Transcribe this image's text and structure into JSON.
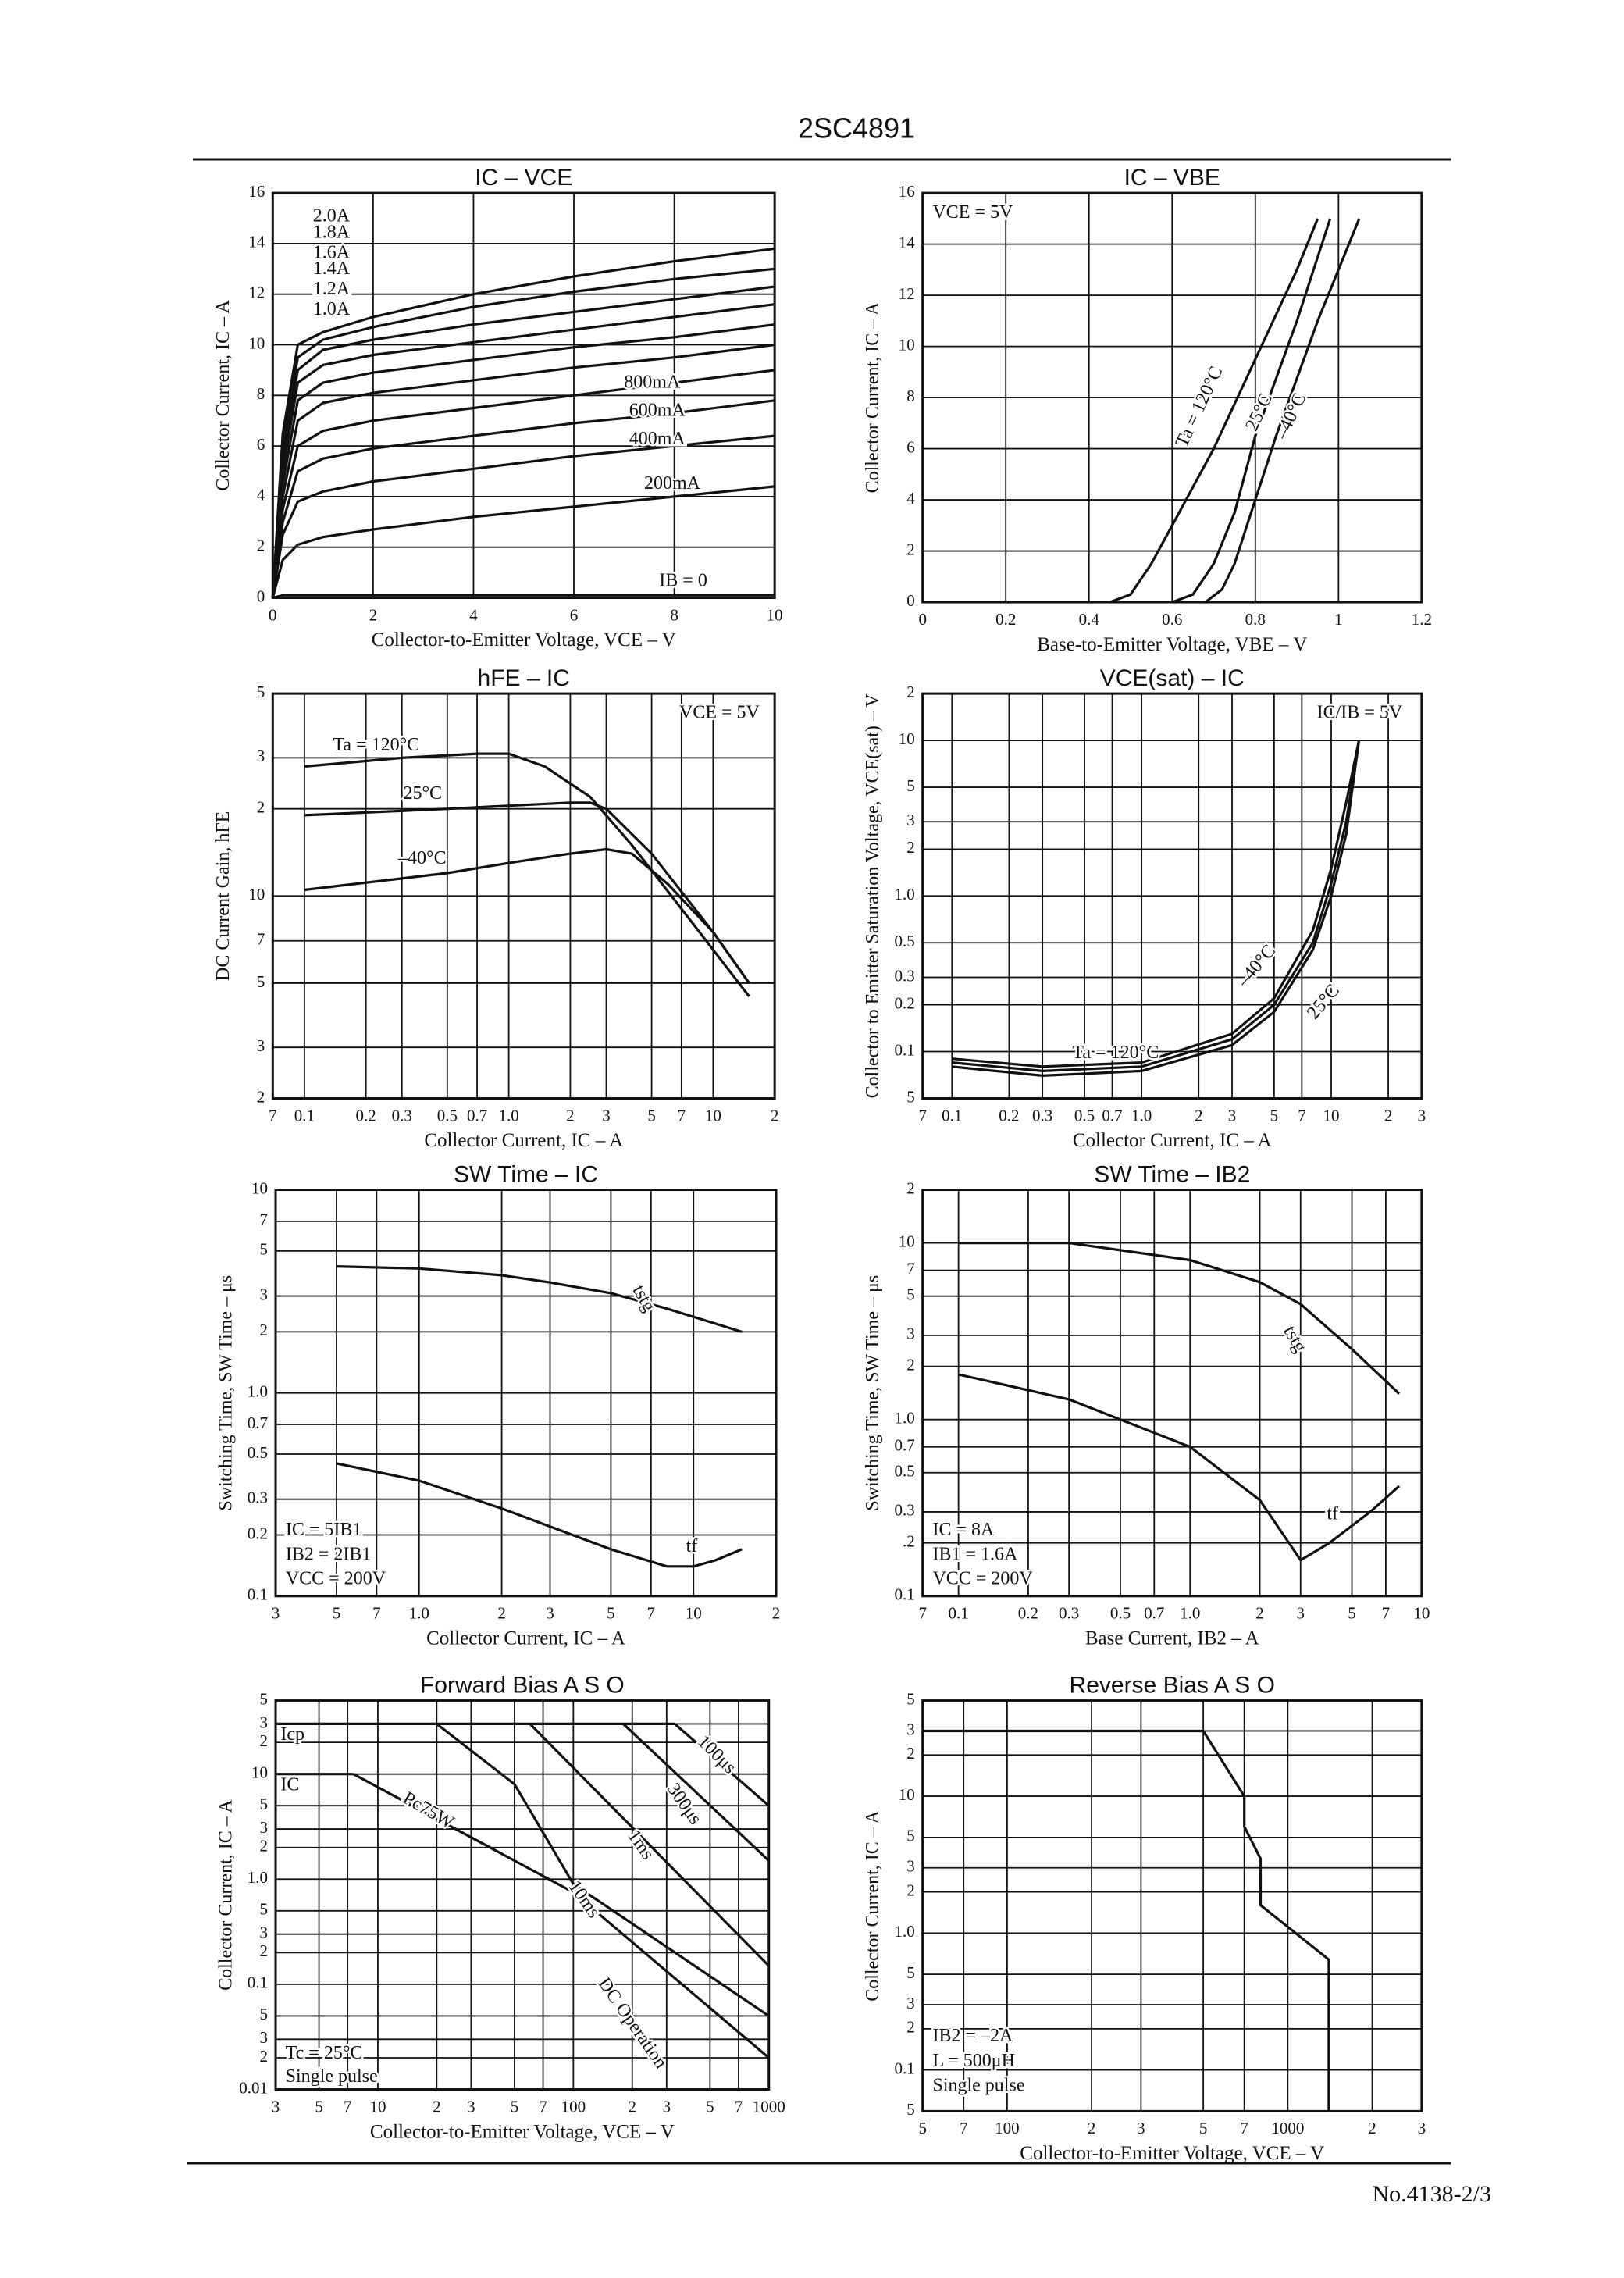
{
  "header": {
    "title": "2SC4891"
  },
  "footer": {
    "text": "No.4138-2/3"
  },
  "chart_data": [
    {
      "type": "line",
      "title": "IC – VCE",
      "x_label": "Collector-to-Emitter Voltage, VCE – V",
      "y_label": "Collector Current, IC – A",
      "xlim": [
        0,
        10
      ],
      "ylim": [
        0,
        16
      ],
      "xticks": [
        0,
        2,
        4,
        6,
        8,
        10
      ],
      "yticks": [
        0,
        2,
        4,
        6,
        8,
        10,
        12,
        14,
        16
      ],
      "grid": true,
      "color": "#111",
      "x": [
        0,
        0.2,
        0.5,
        1,
        2,
        4,
        6,
        8,
        10
      ],
      "series": [
        {
          "name": "IB = 0",
          "values": [
            0,
            0.1,
            0.1,
            0.1,
            0.1,
            0.1,
            0.1,
            0.1,
            0.1
          ]
        },
        {
          "name": "200mA",
          "values": [
            0,
            1.5,
            2.1,
            2.4,
            2.7,
            3.2,
            3.6,
            4.0,
            4.4
          ]
        },
        {
          "name": "400mA",
          "values": [
            0,
            2.5,
            3.8,
            4.2,
            4.6,
            5.1,
            5.6,
            6.0,
            6.4
          ]
        },
        {
          "name": "600mA",
          "values": [
            0,
            3,
            5,
            5.5,
            5.9,
            6.4,
            6.9,
            7.3,
            7.8
          ]
        },
        {
          "name": "800mA",
          "values": [
            0,
            3.5,
            6,
            6.6,
            7,
            7.5,
            8,
            8.5,
            9.0
          ]
        },
        {
          "name": "1.0A",
          "values": [
            0,
            4,
            7,
            7.7,
            8.1,
            8.6,
            9.1,
            9.5,
            10.0
          ]
        },
        {
          "name": "1.2A",
          "values": [
            0,
            4.5,
            7.8,
            8.5,
            8.9,
            9.4,
            9.9,
            10.3,
            10.8
          ]
        },
        {
          "name": "1.4A",
          "values": [
            0,
            5,
            8.5,
            9.2,
            9.6,
            10.1,
            10.6,
            11.1,
            11.6
          ]
        },
        {
          "name": "1.6A",
          "values": [
            0,
            5.5,
            9,
            9.8,
            10.2,
            10.8,
            11.3,
            11.8,
            12.3
          ]
        },
        {
          "name": "1.8A",
          "values": [
            0,
            6,
            9.5,
            10.2,
            10.7,
            11.5,
            12.1,
            12.6,
            13.0
          ]
        },
        {
          "name": "2.0A",
          "values": [
            0,
            6.5,
            10,
            10.5,
            11.1,
            12,
            12.7,
            13.3,
            13.8
          ]
        }
      ]
    },
    {
      "type": "line",
      "title": "IC – VBE",
      "x_label": "Base-to-Emitter Voltage, VBE – V",
      "y_label": "Collector Current, IC – A",
      "xlim": [
        0,
        1.2
      ],
      "ylim": [
        0,
        16
      ],
      "xticks": [
        0,
        0.2,
        0.4,
        0.6,
        0.8,
        1.0,
        1.2
      ],
      "yticks": [
        0,
        2,
        4,
        6,
        8,
        10,
        12,
        14,
        16
      ],
      "grid": true,
      "color": "#111",
      "annotations": [
        "VCE = 5V"
      ],
      "series": [
        {
          "name": "Ta = 120°C",
          "x": [
            0.45,
            0.5,
            0.55,
            0.6,
            0.7,
            0.8,
            0.9,
            0.95
          ],
          "values": [
            0,
            0.3,
            1.5,
            3,
            6,
            9.5,
            13,
            15
          ]
        },
        {
          "name": "25°C",
          "x": [
            0.6,
            0.65,
            0.7,
            0.75,
            0.8,
            0.9,
            0.98
          ],
          "values": [
            0,
            0.3,
            1.5,
            3.5,
            6.5,
            11,
            15
          ]
        },
        {
          "name": "–40°C",
          "x": [
            0.68,
            0.72,
            0.75,
            0.78,
            0.85,
            0.95,
            1.05
          ],
          "values": [
            0,
            0.5,
            1.5,
            3,
            6.5,
            11,
            15
          ]
        }
      ]
    },
    {
      "type": "line",
      "title": "hFE – IC",
      "x_label": "Collector Current, IC – A",
      "y_label": "DC Current Gain, hFE",
      "xscale": "log",
      "yscale": "log",
      "xlim": [
        0.07,
        20
      ],
      "ylim": [
        2,
        50
      ],
      "grid": true,
      "color": "#111",
      "xticks": [
        {
          "value": 0.07,
          "label": "7"
        },
        0.1,
        0.2,
        0.3,
        0.5,
        0.7,
        {
          "value": 1,
          "label": "1.0"
        },
        2,
        3,
        5,
        7,
        10,
        {
          "value": 20,
          "label": "2"
        }
      ],
      "yticks": [
        2,
        3,
        5,
        7,
        10,
        {
          "value": 20,
          "label": "2"
        },
        {
          "value": 30,
          "label": "3"
        },
        {
          "value": 50,
          "label": "5"
        }
      ],
      "annotations": [
        "VCE = 5V"
      ],
      "series": [
        {
          "name": "Ta = 120°C",
          "x": [
            0.1,
            0.3,
            0.7,
            1.0,
            1.5,
            2.5,
            4,
            8,
            15
          ],
          "values": [
            28,
            30,
            31,
            31,
            28,
            22,
            15,
            8,
            4.5
          ]
        },
        {
          "name": "25°C",
          "x": [
            0.1,
            0.5,
            1,
            2,
            2.5,
            3,
            5,
            10,
            15
          ],
          "values": [
            19,
            20,
            20.5,
            21,
            21,
            20,
            14,
            7.5,
            5
          ]
        },
        {
          "name": "–40°C",
          "x": [
            0.1,
            0.5,
            1,
            2,
            3,
            4,
            6,
            10,
            15
          ],
          "values": [
            10.5,
            12,
            13,
            14,
            14.5,
            14,
            11,
            7.5,
            5
          ]
        }
      ]
    },
    {
      "type": "line",
      "title": "VCE(sat) – IC",
      "x_label": "Collector Current, IC – A",
      "y_label": "Collector to Emitter Saturation Voltage, VCE(sat) – V",
      "xscale": "log",
      "yscale": "log",
      "xlim": [
        0.07,
        30
      ],
      "ylim": [
        0.05,
        20
      ],
      "grid": true,
      "color": "#111",
      "xticks": [
        {
          "value": 0.07,
          "label": "7"
        },
        0.1,
        0.2,
        0.3,
        0.5,
        0.7,
        {
          "value": 1,
          "label": "1.0"
        },
        2,
        3,
        5,
        7,
        10,
        {
          "value": 20,
          "label": "2"
        },
        {
          "value": 30,
          "label": "3"
        }
      ],
      "yticks": [
        {
          "value": 0.05,
          "label": "5"
        },
        0.1,
        0.2,
        0.3,
        0.5,
        {
          "value": 1,
          "label": "1.0"
        },
        2,
        3,
        5,
        10,
        {
          "value": 20,
          "label": "2"
        }
      ],
      "annotations": [
        "IC/IB = 5V"
      ],
      "series": [
        {
          "name": "Ta = 120°C",
          "x": [
            0.1,
            0.3,
            1,
            3,
            5,
            8,
            10,
            12,
            14
          ],
          "values": [
            0.09,
            0.08,
            0.085,
            0.13,
            0.22,
            0.6,
            1.5,
            4,
            10
          ]
        },
        {
          "name": "–40°C",
          "x": [
            0.1,
            0.3,
            1,
            3,
            5,
            8,
            10,
            12,
            14
          ],
          "values": [
            0.08,
            0.07,
            0.075,
            0.11,
            0.18,
            0.45,
            1.0,
            2.5,
            10
          ]
        },
        {
          "name": "25°C",
          "x": [
            0.1,
            0.3,
            1,
            3,
            5,
            8,
            10,
            12,
            14
          ],
          "values": [
            0.085,
            0.075,
            0.08,
            0.12,
            0.2,
            0.5,
            1.2,
            3,
            10
          ]
        }
      ]
    },
    {
      "type": "line",
      "title": "SW Time – IC",
      "x_label": "Collector Current, IC – A",
      "y_label": "Switching Time, SW Time – μs",
      "xscale": "log",
      "yscale": "log",
      "xlim": [
        0.3,
        20
      ],
      "ylim": [
        0.1,
        10
      ],
      "grid": true,
      "color": "#111",
      "xticks": [
        {
          "value": 0.3,
          "label": "3"
        },
        {
          "value": 0.5,
          "label": "5"
        },
        {
          "value": 0.7,
          "label": "7"
        },
        {
          "value": 1,
          "label": "1.0"
        },
        2,
        3,
        5,
        7,
        10,
        {
          "value": 20,
          "label": "2"
        }
      ],
      "yticks": [
        0.1,
        0.2,
        0.3,
        0.5,
        0.7,
        {
          "value": 1,
          "label": "1.0"
        },
        2,
        3,
        5,
        7,
        10
      ],
      "annotations": [
        "IC = 5IB1",
        "IB2 = 2IB1",
        "VCC = 200V"
      ],
      "series": [
        {
          "name": "tstg",
          "x": [
            0.5,
            1,
            2,
            3,
            5,
            8,
            15
          ],
          "values": [
            4.2,
            4.1,
            3.8,
            3.5,
            3.1,
            2.6,
            2.0
          ]
        },
        {
          "name": "tf",
          "x": [
            0.5,
            1,
            2,
            3,
            5,
            8,
            10,
            12,
            15
          ],
          "values": [
            0.45,
            0.37,
            0.27,
            0.22,
            0.17,
            0.14,
            0.14,
            0.15,
            0.17
          ]
        }
      ]
    },
    {
      "type": "line",
      "title": "SW Time – IB2",
      "x_label": "Base Current, IB2 – A",
      "y_label": "Switching Time, SW Time – μs",
      "xscale": "log",
      "yscale": "log",
      "xlim": [
        0.07,
        10
      ],
      "ylim": [
        0.1,
        20
      ],
      "grid": true,
      "color": "#111",
      "xticks": [
        {
          "value": 0.07,
          "label": "7"
        },
        0.1,
        0.2,
        0.3,
        0.5,
        0.7,
        {
          "value": 1,
          "label": "1.0"
        },
        2,
        3,
        5,
        7,
        10
      ],
      "yticks": [
        0.1,
        {
          "value": 0.2,
          "label": ".2"
        },
        0.3,
        0.5,
        0.7,
        {
          "value": 1,
          "label": "1.0"
        },
        2,
        3,
        5,
        7,
        10,
        {
          "value": 20,
          "label": "2"
        }
      ],
      "annotations": [
        "IC = 8A",
        "IB1 = 1.6A",
        "VCC = 200V"
      ],
      "series": [
        {
          "name": "tstg",
          "x": [
            0.1,
            0.3,
            1,
            2,
            3,
            5,
            8
          ],
          "values": [
            10,
            10,
            8,
            6,
            4.5,
            2.5,
            1.4
          ]
        },
        {
          "name": "tf",
          "x": [
            0.1,
            0.3,
            1,
            2,
            3,
            4,
            6,
            8
          ],
          "values": [
            1.8,
            1.3,
            0.7,
            0.35,
            0.16,
            0.2,
            0.3,
            0.42
          ]
        }
      ]
    },
    {
      "type": "line",
      "title": "Forward Bias A S O",
      "x_label": "Collector-to-Emitter Voltage, VCE – V",
      "y_label": "Collector Current, IC – A",
      "xscale": "log",
      "yscale": "log",
      "xlim": [
        3,
        1000
      ],
      "ylim": [
        0.01,
        50
      ],
      "grid": true,
      "color": "#111",
      "xticks": [
        3,
        5,
        7,
        10,
        {
          "value": 20,
          "label": "2"
        },
        {
          "value": 30,
          "label": "3"
        },
        {
          "value": 50,
          "label": "5"
        },
        {
          "value": 70,
          "label": "7"
        },
        100,
        {
          "value": 200,
          "label": "2"
        },
        {
          "value": 300,
          "label": "3"
        },
        {
          "value": 500,
          "label": "5"
        },
        {
          "value": 700,
          "label": "7"
        },
        1000
      ],
      "yticks": [
        0.01,
        {
          "value": 0.02,
          "label": "2"
        },
        {
          "value": 0.03,
          "label": "3"
        },
        {
          "value": 0.05,
          "label": "5"
        },
        0.1,
        {
          "value": 0.2,
          "label": "2"
        },
        {
          "value": 0.3,
          "label": "3"
        },
        {
          "value": 0.5,
          "label": "5"
        },
        {
          "value": 1,
          "label": "1.0"
        },
        2,
        3,
        5,
        10,
        {
          "value": 20,
          "label": "2"
        },
        {
          "value": 30,
          "label": "3"
        },
        {
          "value": 50,
          "label": "5"
        }
      ],
      "annotations": [
        "Tc = 25°C",
        "Single pulse"
      ],
      "series": [
        {
          "name": "Icp",
          "x": [
            3,
            330
          ],
          "values": [
            30,
            30
          ]
        },
        {
          "name": "IC",
          "x": [
            3,
            7.5
          ],
          "values": [
            10,
            10
          ]
        },
        {
          "name": "Pc75W",
          "x": [
            7.5,
            100
          ],
          "values": [
            10,
            0.75
          ]
        },
        {
          "name": "DC Operation",
          "x": [
            100,
            1000
          ],
          "values": [
            0.75,
            0.02
          ]
        },
        {
          "name": "10ms",
          "x": [
            20,
            50,
            100,
            1000
          ],
          "values": [
            30,
            8,
            0.9,
            0.05
          ]
        },
        {
          "name": "1ms",
          "x": [
            60,
            1000
          ],
          "values": [
            30,
            0.15
          ]
        },
        {
          "name": "300μs",
          "x": [
            180,
            1000
          ],
          "values": [
            30,
            1.5
          ]
        },
        {
          "name": "100μs",
          "x": [
            330,
            1000
          ],
          "values": [
            30,
            5
          ]
        }
      ]
    },
    {
      "type": "line",
      "title": "Reverse Bias A S O",
      "x_label": "Collector-to-Emitter Voltage, VCE – V",
      "y_label": "Collector Current, IC – A",
      "xscale": "log",
      "yscale": "log",
      "xlim": [
        50,
        3000
      ],
      "ylim": [
        0.05,
        50
      ],
      "grid": true,
      "color": "#111",
      "xticks": [
        {
          "value": 50,
          "label": "5"
        },
        {
          "value": 70,
          "label": "7"
        },
        100,
        {
          "value": 200,
          "label": "2"
        },
        {
          "value": 300,
          "label": "3"
        },
        {
          "value": 500,
          "label": "5"
        },
        {
          "value": 700,
          "label": "7"
        },
        1000,
        {
          "value": 2000,
          "label": "2"
        },
        {
          "value": 3000,
          "label": "3"
        }
      ],
      "yticks": [
        {
          "value": 0.05,
          "label": "5"
        },
        0.1,
        {
          "value": 0.2,
          "label": "2"
        },
        {
          "value": 0.3,
          "label": "3"
        },
        {
          "value": 0.5,
          "label": "5"
        },
        {
          "value": 1,
          "label": "1.0"
        },
        2,
        3,
        5,
        10,
        {
          "value": 20,
          "label": "2"
        },
        {
          "value": 30,
          "label": "3"
        },
        {
          "value": 50,
          "label": "5"
        }
      ],
      "annotations": [
        "IB2 = –2A",
        "L = 500μH",
        "Single pulse"
      ],
      "x": [
        50,
        500,
        700,
        700,
        800,
        800,
        1400,
        1400
      ],
      "values": [
        30,
        30,
        10,
        6,
        3.5,
        1.6,
        0.64,
        0.05
      ]
    }
  ]
}
